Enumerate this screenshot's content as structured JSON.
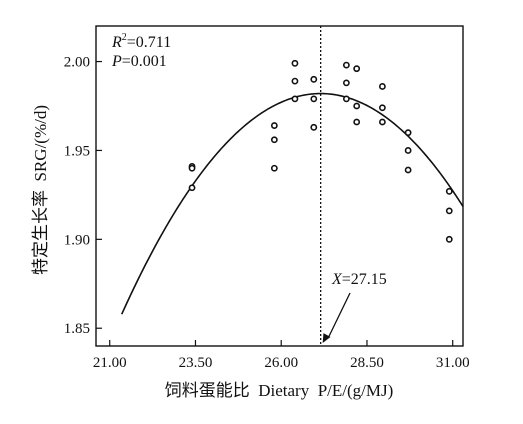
{
  "chart_data": {
    "type": "scatter",
    "xlabel": "饲料蛋能比  Dietary  P/E/(g/MJ)",
    "ylabel": "特定生长率  SRG/(%/d)",
    "xlim": [
      20.6,
      31.3
    ],
    "ylim": [
      1.84,
      2.02
    ],
    "xticks": [
      21.0,
      23.5,
      26.0,
      28.5,
      31.0
    ],
    "xtick_labels": [
      "21.00",
      "23.50",
      "26.00",
      "28.50",
      "31.00"
    ],
    "yticks": [
      1.85,
      1.9,
      1.95,
      2.0
    ],
    "ytick_labels": [
      "1.85",
      "1.90",
      "1.95",
      "2.00"
    ],
    "grid": false,
    "stats": {
      "r2_label": "R",
      "r2_sup": "2",
      "r2_value": "=0.711",
      "p_label": "P",
      "p_value": "=0.001"
    },
    "fit": {
      "type": "quadratic",
      "vertex_x": 27.15,
      "vertex_y": 1.982,
      "a": -0.00369,
      "x_range": [
        21.35,
        31.3
      ]
    },
    "vline": {
      "x": 27.15,
      "style": "dotted"
    },
    "annotation": {
      "label_var": "X",
      "label_value": "=27.15"
    },
    "points": [
      {
        "x": 23.4,
        "y": 1.941
      },
      {
        "x": 23.4,
        "y": 1.94
      },
      {
        "x": 23.4,
        "y": 1.929
      },
      {
        "x": 25.8,
        "y": 1.964
      },
      {
        "x": 25.8,
        "y": 1.956
      },
      {
        "x": 25.8,
        "y": 1.94
      },
      {
        "x": 26.4,
        "y": 1.999
      },
      {
        "x": 26.4,
        "y": 1.989
      },
      {
        "x": 26.4,
        "y": 1.979
      },
      {
        "x": 26.95,
        "y": 1.99
      },
      {
        "x": 26.95,
        "y": 1.979
      },
      {
        "x": 26.95,
        "y": 1.963
      },
      {
        "x": 27.9,
        "y": 1.998
      },
      {
        "x": 27.9,
        "y": 1.988
      },
      {
        "x": 27.9,
        "y": 1.979
      },
      {
        "x": 28.2,
        "y": 1.996
      },
      {
        "x": 28.2,
        "y": 1.975
      },
      {
        "x": 28.2,
        "y": 1.966
      },
      {
        "x": 28.95,
        "y": 1.986
      },
      {
        "x": 28.95,
        "y": 1.974
      },
      {
        "x": 28.95,
        "y": 1.966
      },
      {
        "x": 29.7,
        "y": 1.96
      },
      {
        "x": 29.7,
        "y": 1.95
      },
      {
        "x": 29.7,
        "y": 1.939
      },
      {
        "x": 30.9,
        "y": 1.927
      },
      {
        "x": 30.9,
        "y": 1.916
      },
      {
        "x": 30.9,
        "y": 1.9
      }
    ]
  }
}
